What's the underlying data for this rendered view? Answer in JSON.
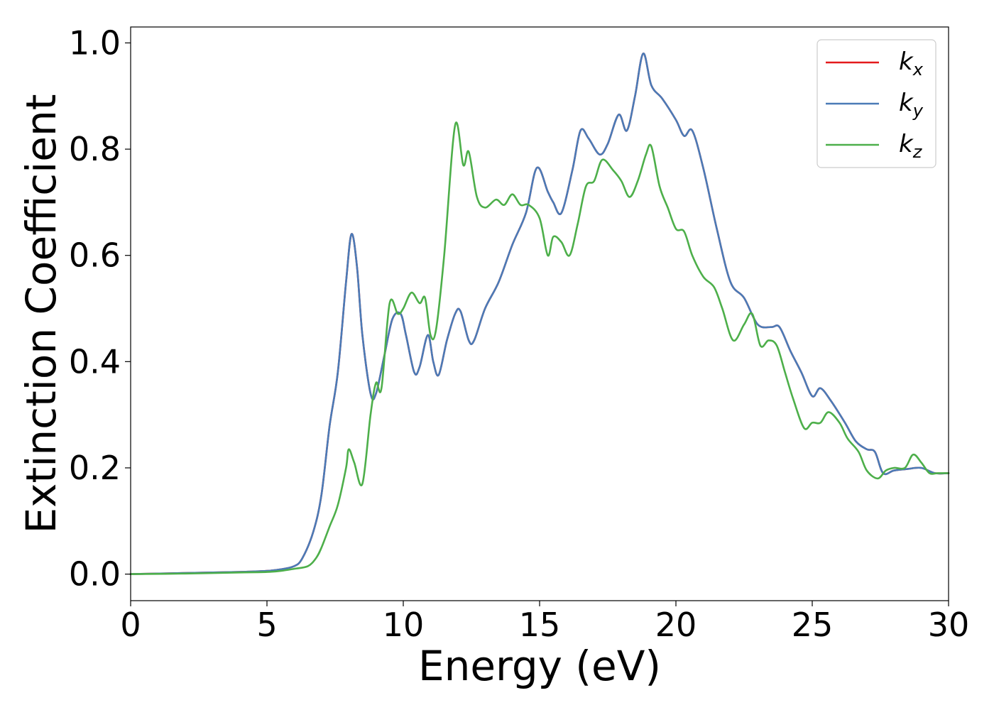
{
  "chart_data": {
    "type": "line",
    "xlabel": "Energy (eV)",
    "ylabel": "Extinction Coefficient",
    "xlim": [
      0,
      30
    ],
    "ylim": [
      -0.05,
      1.03
    ],
    "xticks": [
      0,
      5,
      10,
      15,
      20,
      25,
      30
    ],
    "yticks": [
      0.0,
      0.2,
      0.4,
      0.6,
      0.8,
      1.0
    ],
    "xtick_labels": [
      "0",
      "5",
      "10",
      "15",
      "20",
      "25",
      "30"
    ],
    "ytick_labels": [
      "0.0",
      "0.2",
      "0.4",
      "0.6",
      "0.8",
      "1.0"
    ],
    "grid": false,
    "legend_position": "top-right",
    "series": [
      {
        "name": "k_x",
        "label_main": "k",
        "label_sub": "x",
        "color": "#e41a1c",
        "x": [
          0,
          2,
          4,
          5,
          5.5,
          6,
          6.3,
          6.7,
          7,
          7.3,
          7.6,
          7.9,
          8.1,
          8.3,
          8.5,
          8.8,
          9.0,
          9.3,
          9.6,
          9.9,
          10.1,
          10.4,
          10.6,
          10.9,
          11.1,
          11.3,
          11.6,
          11.9,
          12.1,
          12.4,
          12.6,
          13.0,
          13.5,
          14.0,
          14.5,
          14.9,
          15.3,
          15.5,
          15.8,
          16.2,
          16.5,
          16.8,
          17.2,
          17.5,
          17.9,
          18.2,
          18.5,
          18.8,
          19.1,
          19.5,
          20.0,
          20.3,
          20.6,
          21.0,
          21.5,
          22.0,
          22.5,
          23.0,
          23.5,
          23.8,
          24.2,
          24.6,
          25.0,
          25.3,
          25.7,
          26.2,
          26.6,
          27.0,
          27.3,
          27.6,
          28.0,
          28.5,
          29.0,
          29.5,
          30.0
        ],
        "y": [
          0.0,
          0.002,
          0.004,
          0.006,
          0.009,
          0.015,
          0.03,
          0.08,
          0.15,
          0.28,
          0.38,
          0.55,
          0.64,
          0.58,
          0.45,
          0.34,
          0.34,
          0.41,
          0.48,
          0.49,
          0.45,
          0.38,
          0.39,
          0.45,
          0.4,
          0.375,
          0.44,
          0.49,
          0.495,
          0.44,
          0.44,
          0.5,
          0.55,
          0.62,
          0.68,
          0.765,
          0.72,
          0.7,
          0.68,
          0.76,
          0.835,
          0.82,
          0.79,
          0.81,
          0.865,
          0.835,
          0.9,
          0.98,
          0.92,
          0.895,
          0.855,
          0.825,
          0.835,
          0.765,
          0.65,
          0.55,
          0.52,
          0.47,
          0.465,
          0.465,
          0.42,
          0.38,
          0.335,
          0.35,
          0.325,
          0.285,
          0.25,
          0.235,
          0.23,
          0.19,
          0.195,
          0.198,
          0.2,
          0.19,
          0.19
        ]
      },
      {
        "name": "k_y",
        "label_main": "k",
        "label_sub": "y",
        "color": "#4a7bb7",
        "x": [
          0,
          2,
          4,
          5,
          5.5,
          6,
          6.3,
          6.7,
          7,
          7.3,
          7.6,
          7.9,
          8.1,
          8.3,
          8.5,
          8.8,
          9.0,
          9.3,
          9.6,
          9.9,
          10.1,
          10.4,
          10.6,
          10.9,
          11.1,
          11.3,
          11.6,
          11.9,
          12.1,
          12.4,
          12.6,
          13.0,
          13.5,
          14.0,
          14.5,
          14.9,
          15.3,
          15.5,
          15.8,
          16.2,
          16.5,
          16.8,
          17.2,
          17.5,
          17.9,
          18.2,
          18.5,
          18.8,
          19.1,
          19.5,
          20.0,
          20.3,
          20.6,
          21.0,
          21.5,
          22.0,
          22.5,
          23.0,
          23.5,
          23.8,
          24.2,
          24.6,
          25.0,
          25.3,
          25.7,
          26.2,
          26.6,
          27.0,
          27.3,
          27.6,
          28.0,
          28.5,
          29.0,
          29.5,
          30.0
        ],
        "y": [
          0.0,
          0.002,
          0.004,
          0.006,
          0.009,
          0.015,
          0.03,
          0.08,
          0.15,
          0.28,
          0.38,
          0.55,
          0.64,
          0.58,
          0.45,
          0.34,
          0.34,
          0.41,
          0.48,
          0.49,
          0.45,
          0.38,
          0.39,
          0.45,
          0.4,
          0.375,
          0.44,
          0.49,
          0.495,
          0.44,
          0.44,
          0.5,
          0.55,
          0.62,
          0.68,
          0.765,
          0.72,
          0.7,
          0.68,
          0.76,
          0.835,
          0.82,
          0.79,
          0.81,
          0.865,
          0.835,
          0.9,
          0.98,
          0.92,
          0.895,
          0.855,
          0.825,
          0.835,
          0.765,
          0.65,
          0.55,
          0.52,
          0.47,
          0.465,
          0.465,
          0.42,
          0.38,
          0.335,
          0.35,
          0.325,
          0.285,
          0.25,
          0.235,
          0.23,
          0.19,
          0.195,
          0.198,
          0.2,
          0.19,
          0.19
        ]
      },
      {
        "name": "k_z",
        "label_main": "k",
        "label_sub": "z",
        "color": "#4daf4a",
        "x": [
          0,
          2,
          4,
          5,
          5.5,
          6,
          6.5,
          6.8,
          7.0,
          7.3,
          7.6,
          7.9,
          8.0,
          8.2,
          8.5,
          8.8,
          9.0,
          9.2,
          9.5,
          9.8,
          10.0,
          10.3,
          10.6,
          10.8,
          11.0,
          11.2,
          11.5,
          11.9,
          12.2,
          12.4,
          12.7,
          13.0,
          13.4,
          13.7,
          14.0,
          14.3,
          14.6,
          15.0,
          15.3,
          15.5,
          15.8,
          16.1,
          16.4,
          16.7,
          17.0,
          17.3,
          17.7,
          18.0,
          18.3,
          18.6,
          18.9,
          19.1,
          19.4,
          19.7,
          20.0,
          20.3,
          20.6,
          21.0,
          21.4,
          21.7,
          22.1,
          22.5,
          22.8,
          23.1,
          23.4,
          23.7,
          24.0,
          24.3,
          24.7,
          25.0,
          25.3,
          25.6,
          26.0,
          26.3,
          26.7,
          27.0,
          27.4,
          27.7,
          28.0,
          28.4,
          28.7,
          29.0,
          29.3,
          29.6,
          30.0
        ],
        "y": [
          0.0,
          0.001,
          0.003,
          0.004,
          0.006,
          0.01,
          0.015,
          0.03,
          0.05,
          0.09,
          0.13,
          0.2,
          0.235,
          0.21,
          0.17,
          0.3,
          0.36,
          0.35,
          0.51,
          0.49,
          0.5,
          0.53,
          0.51,
          0.52,
          0.45,
          0.46,
          0.6,
          0.845,
          0.77,
          0.795,
          0.71,
          0.69,
          0.705,
          0.695,
          0.715,
          0.695,
          0.695,
          0.67,
          0.6,
          0.635,
          0.625,
          0.6,
          0.66,
          0.73,
          0.74,
          0.78,
          0.76,
          0.74,
          0.71,
          0.74,
          0.79,
          0.805,
          0.73,
          0.69,
          0.65,
          0.645,
          0.6,
          0.56,
          0.54,
          0.5,
          0.44,
          0.47,
          0.49,
          0.43,
          0.44,
          0.43,
          0.38,
          0.33,
          0.275,
          0.285,
          0.285,
          0.305,
          0.285,
          0.255,
          0.23,
          0.195,
          0.18,
          0.195,
          0.2,
          0.2,
          0.225,
          0.21,
          0.19,
          0.19,
          0.19
        ]
      }
    ]
  }
}
